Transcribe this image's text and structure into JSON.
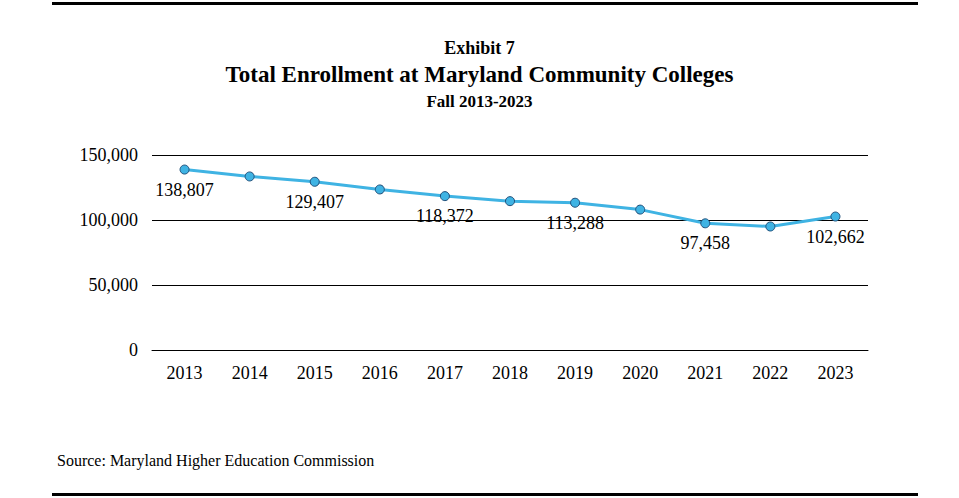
{
  "chart_data": {
    "type": "line",
    "caption": "Exhibit 7",
    "title": "Total Enrollment at Maryland Community Colleges",
    "subtitle": "Fall 2013-2023",
    "source": "Source: Maryland Higher Education Commission",
    "categories": [
      "2013",
      "2014",
      "2015",
      "2016",
      "2017",
      "2018",
      "2019",
      "2020",
      "2021",
      "2022",
      "2023"
    ],
    "values": [
      138807,
      133500,
      129407,
      123500,
      118372,
      114500,
      113288,
      108000,
      97458,
      95000,
      102662
    ],
    "value_labels": [
      "138,807",
      null,
      "129,407",
      null,
      "118,372",
      null,
      "113,288",
      null,
      "97,458",
      null,
      "102,662"
    ],
    "data_labels": true,
    "color": "#3fb3e3",
    "marker": "circle",
    "ylim": [
      0,
      150000
    ],
    "yticks": [
      0,
      {
        "value": 50000,
        "label": "50,000"
      },
      {
        "value": 100000,
        "label": "100,000"
      },
      {
        "value": 150000,
        "label": "150,000"
      }
    ],
    "grid": true
  }
}
